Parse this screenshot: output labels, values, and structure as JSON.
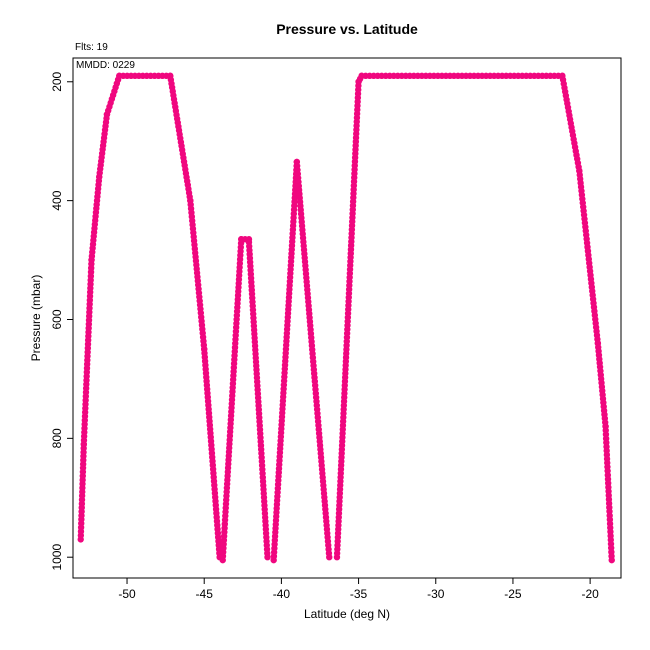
{
  "chart_data": {
    "type": "scatter",
    "title": "Pressure vs. Latitude",
    "annotations": [
      "Flts: 19",
      "MMDD: 0229"
    ],
    "xlabel": "Latitude (deg N)",
    "ylabel": "Pressure (mbar)",
    "xlim": [
      -53.5,
      -18.0
    ],
    "ylim": [
      1035,
      160
    ],
    "y_axis_inverted": true,
    "xticks": [
      -50,
      -45,
      -40,
      -35,
      -30,
      -25,
      -20
    ],
    "yticks": [
      200,
      400,
      600,
      800,
      1000
    ],
    "grid": false,
    "marker_color": "#f0077f",
    "segments": [
      {
        "from": [
          -53.0,
          970
        ],
        "to": [
          -52.8,
          810
        ]
      },
      {
        "from": [
          -52.8,
          810
        ],
        "to": [
          -52.3,
          500
        ]
      },
      {
        "from": [
          -52.3,
          500
        ],
        "to": [
          -51.8,
          360
        ]
      },
      {
        "from": [
          -51.8,
          360
        ],
        "to": [
          -51.3,
          255
        ]
      },
      {
        "from": [
          -51.3,
          255
        ],
        "to": [
          -50.5,
          190
        ]
      },
      {
        "from": [
          -50.5,
          190
        ],
        "to": [
          -47.2,
          190
        ]
      },
      {
        "from": [
          -47.2,
          190
        ],
        "to": [
          -45.9,
          400
        ]
      },
      {
        "from": [
          -45.9,
          400
        ],
        "to": [
          -45.0,
          650
        ]
      },
      {
        "from": [
          -45.0,
          650
        ],
        "to": [
          -44.0,
          1000
        ]
      },
      {
        "from": [
          -43.8,
          1005
        ],
        "to": [
          -42.6,
          465
        ]
      },
      {
        "from": [
          -42.6,
          465
        ],
        "to": [
          -42.1,
          465
        ]
      },
      {
        "from": [
          -42.1,
          470
        ],
        "to": [
          -40.9,
          1000
        ]
      },
      {
        "from": [
          -40.5,
          1005
        ],
        "to": [
          -39.0,
          335
        ]
      },
      {
        "from": [
          -39.0,
          335
        ],
        "to": [
          -36.9,
          1000
        ]
      },
      {
        "from": [
          -36.4,
          1000
        ],
        "to": [
          -35.0,
          200
        ]
      },
      {
        "from": [
          -35.0,
          200
        ],
        "to": [
          -34.8,
          190
        ]
      },
      {
        "from": [
          -34.8,
          190
        ],
        "to": [
          -21.8,
          190
        ]
      },
      {
        "from": [
          -21.8,
          190
        ],
        "to": [
          -20.7,
          350
        ]
      },
      {
        "from": [
          -20.7,
          350
        ],
        "to": [
          -19.5,
          640
        ]
      },
      {
        "from": [
          -19.5,
          640
        ],
        "to": [
          -19.0,
          780
        ]
      },
      {
        "from": [
          -19.0,
          780
        ],
        "to": [
          -18.6,
          1005
        ]
      }
    ]
  }
}
